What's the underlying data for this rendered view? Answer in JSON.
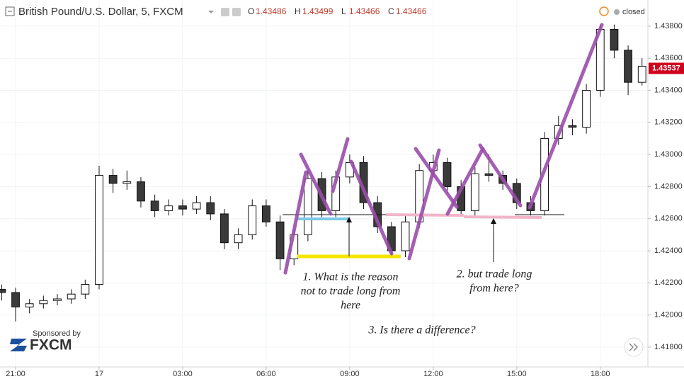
{
  "chart_data": {
    "type": "candlestick",
    "title": "British Pound/U.S. Dollar, 5, FXCM",
    "ohlc_header": [
      {
        "label": "O",
        "value": 1.43486
      },
      {
        "label": "H",
        "value": 1.43499
      },
      {
        "label": "L",
        "value": 1.43466
      },
      {
        "label": "C",
        "value": 1.43466
      }
    ],
    "status": "closed",
    "last_price": 1.43537,
    "sponsor": "Sponsored by",
    "sponsor_name": "FXCM",
    "up_color": "#ffffff",
    "down_color": "#3a3a3a",
    "outline_color": "#111111",
    "price_tag_color": "#d0021b",
    "x": [
      -0.5,
      0,
      0.5,
      1,
      1.5,
      2,
      2.5,
      3,
      3.5,
      4,
      4.5,
      5,
      5.5,
      6,
      6.5,
      7,
      7.5,
      8,
      8.5,
      9,
      9.5,
      10,
      10.5,
      11,
      11.5,
      12,
      12.5,
      13,
      13.5,
      14,
      14.5,
      15,
      15.5,
      16,
      16.5,
      17,
      17.5,
      18,
      18.5,
      19,
      19.5,
      20,
      20.5,
      21,
      21.5,
      22,
      22.5
    ],
    "open": [
      1.4216,
      1.4214,
      1.4205,
      1.4207,
      1.4209,
      1.421,
      1.4213,
      1.4219,
      1.4287,
      1.4282,
      1.4283,
      1.4271,
      1.4265,
      1.4268,
      1.4266,
      1.427,
      1.4263,
      1.4245,
      1.425,
      1.4268,
      1.4258,
      1.4235,
      1.425,
      1.4285,
      1.4265,
      1.4286,
      1.4295,
      1.427,
      1.4255,
      1.424,
      1.4258,
      1.429,
      1.4295,
      1.428,
      1.4265,
      1.4288,
      1.4287,
      1.4282,
      1.427,
      1.4265,
      1.431,
      1.4318,
      1.4317,
      1.434,
      1.4378,
      1.4365,
      1.4345
    ],
    "high": [
      1.4219,
      1.4217,
      1.421,
      1.4212,
      1.4213,
      1.4216,
      1.4222,
      1.4293,
      1.4291,
      1.429,
      1.4286,
      1.4275,
      1.4272,
      1.4272,
      1.4274,
      1.4274,
      1.4266,
      1.4254,
      1.4272,
      1.4272,
      1.4262,
      1.4253,
      1.429,
      1.4289,
      1.429,
      1.43,
      1.4299,
      1.4274,
      1.4258,
      1.4262,
      1.4294,
      1.43,
      1.4298,
      1.4284,
      1.4292,
      1.43,
      1.429,
      1.4285,
      1.4274,
      1.4314,
      1.4324,
      1.4322,
      1.4344,
      1.4381,
      1.4381,
      1.4368,
      1.436
    ],
    "low": [
      1.4209,
      1.4196,
      1.4201,
      1.4204,
      1.4206,
      1.4207,
      1.421,
      1.4216,
      1.4276,
      1.4278,
      1.4267,
      1.4261,
      1.4262,
      1.4262,
      1.4263,
      1.4259,
      1.4241,
      1.4241,
      1.4247,
      1.4255,
      1.4228,
      1.4231,
      1.4246,
      1.4261,
      1.4261,
      1.4282,
      1.4266,
      1.4251,
      1.4236,
      1.4236,
      1.4254,
      1.4286,
      1.4276,
      1.4262,
      1.4262,
      1.4283,
      1.4278,
      1.4266,
      1.4262,
      1.4262,
      1.4306,
      1.4312,
      1.4313,
      1.4336,
      1.436,
      1.4337,
      1.4343
    ],
    "close": [
      1.4214,
      1.4205,
      1.4207,
      1.4209,
      1.421,
      1.4213,
      1.4219,
      1.4287,
      1.4282,
      1.4283,
      1.4271,
      1.4265,
      1.4268,
      1.4266,
      1.427,
      1.4263,
      1.4245,
      1.425,
      1.4268,
      1.4258,
      1.4235,
      1.425,
      1.4285,
      1.4265,
      1.4286,
      1.4295,
      1.427,
      1.4255,
      1.424,
      1.4258,
      1.429,
      1.4295,
      1.428,
      1.4265,
      1.4288,
      1.4287,
      1.4282,
      1.427,
      1.4265,
      1.431,
      1.4318,
      1.4317,
      1.434,
      1.4378,
      1.4365,
      1.4345,
      1.4355
    ],
    "xlim": [
      -0.56,
      22.71
    ],
    "xticks": [
      {
        "value": 0,
        "label": "21:00"
      },
      {
        "value": 3,
        "label": "17"
      },
      {
        "value": 6,
        "label": "03:00"
      },
      {
        "value": 9,
        "label": "06:00"
      },
      {
        "value": 12,
        "label": "09:00"
      },
      {
        "value": 15,
        "label": "12:00"
      },
      {
        "value": 18,
        "label": "15:00"
      },
      {
        "value": 21,
        "label": "18:00"
      }
    ],
    "ylim": [
      1.41676,
      1.43963
    ],
    "yticks": [
      {
        "value": 1.418,
        "label": "1.41800"
      },
      {
        "value": 1.42,
        "label": "1.42000"
      },
      {
        "value": 1.422,
        "label": "1.42200"
      },
      {
        "value": 1.424,
        "label": "1.42400"
      },
      {
        "value": 1.426,
        "label": "1.42600"
      },
      {
        "value": 1.428,
        "label": "1.42800"
      },
      {
        "value": 1.43,
        "label": "1.43000"
      },
      {
        "value": 1.432,
        "label": "1.43200"
      },
      {
        "value": 1.434,
        "label": "1.43400"
      },
      {
        "value": 1.436,
        "label": "1.43600"
      },
      {
        "value": 1.438,
        "label": "1.43800"
      }
    ],
    "annotations": [
      {
        "lines": [
          "1. What is the reason",
          "not to trade long from",
          "here"
        ]
      },
      {
        "lines": [
          "2. but trade long",
          "from here?"
        ]
      },
      {
        "lines": [
          "3. Is there a difference?"
        ]
      }
    ]
  }
}
